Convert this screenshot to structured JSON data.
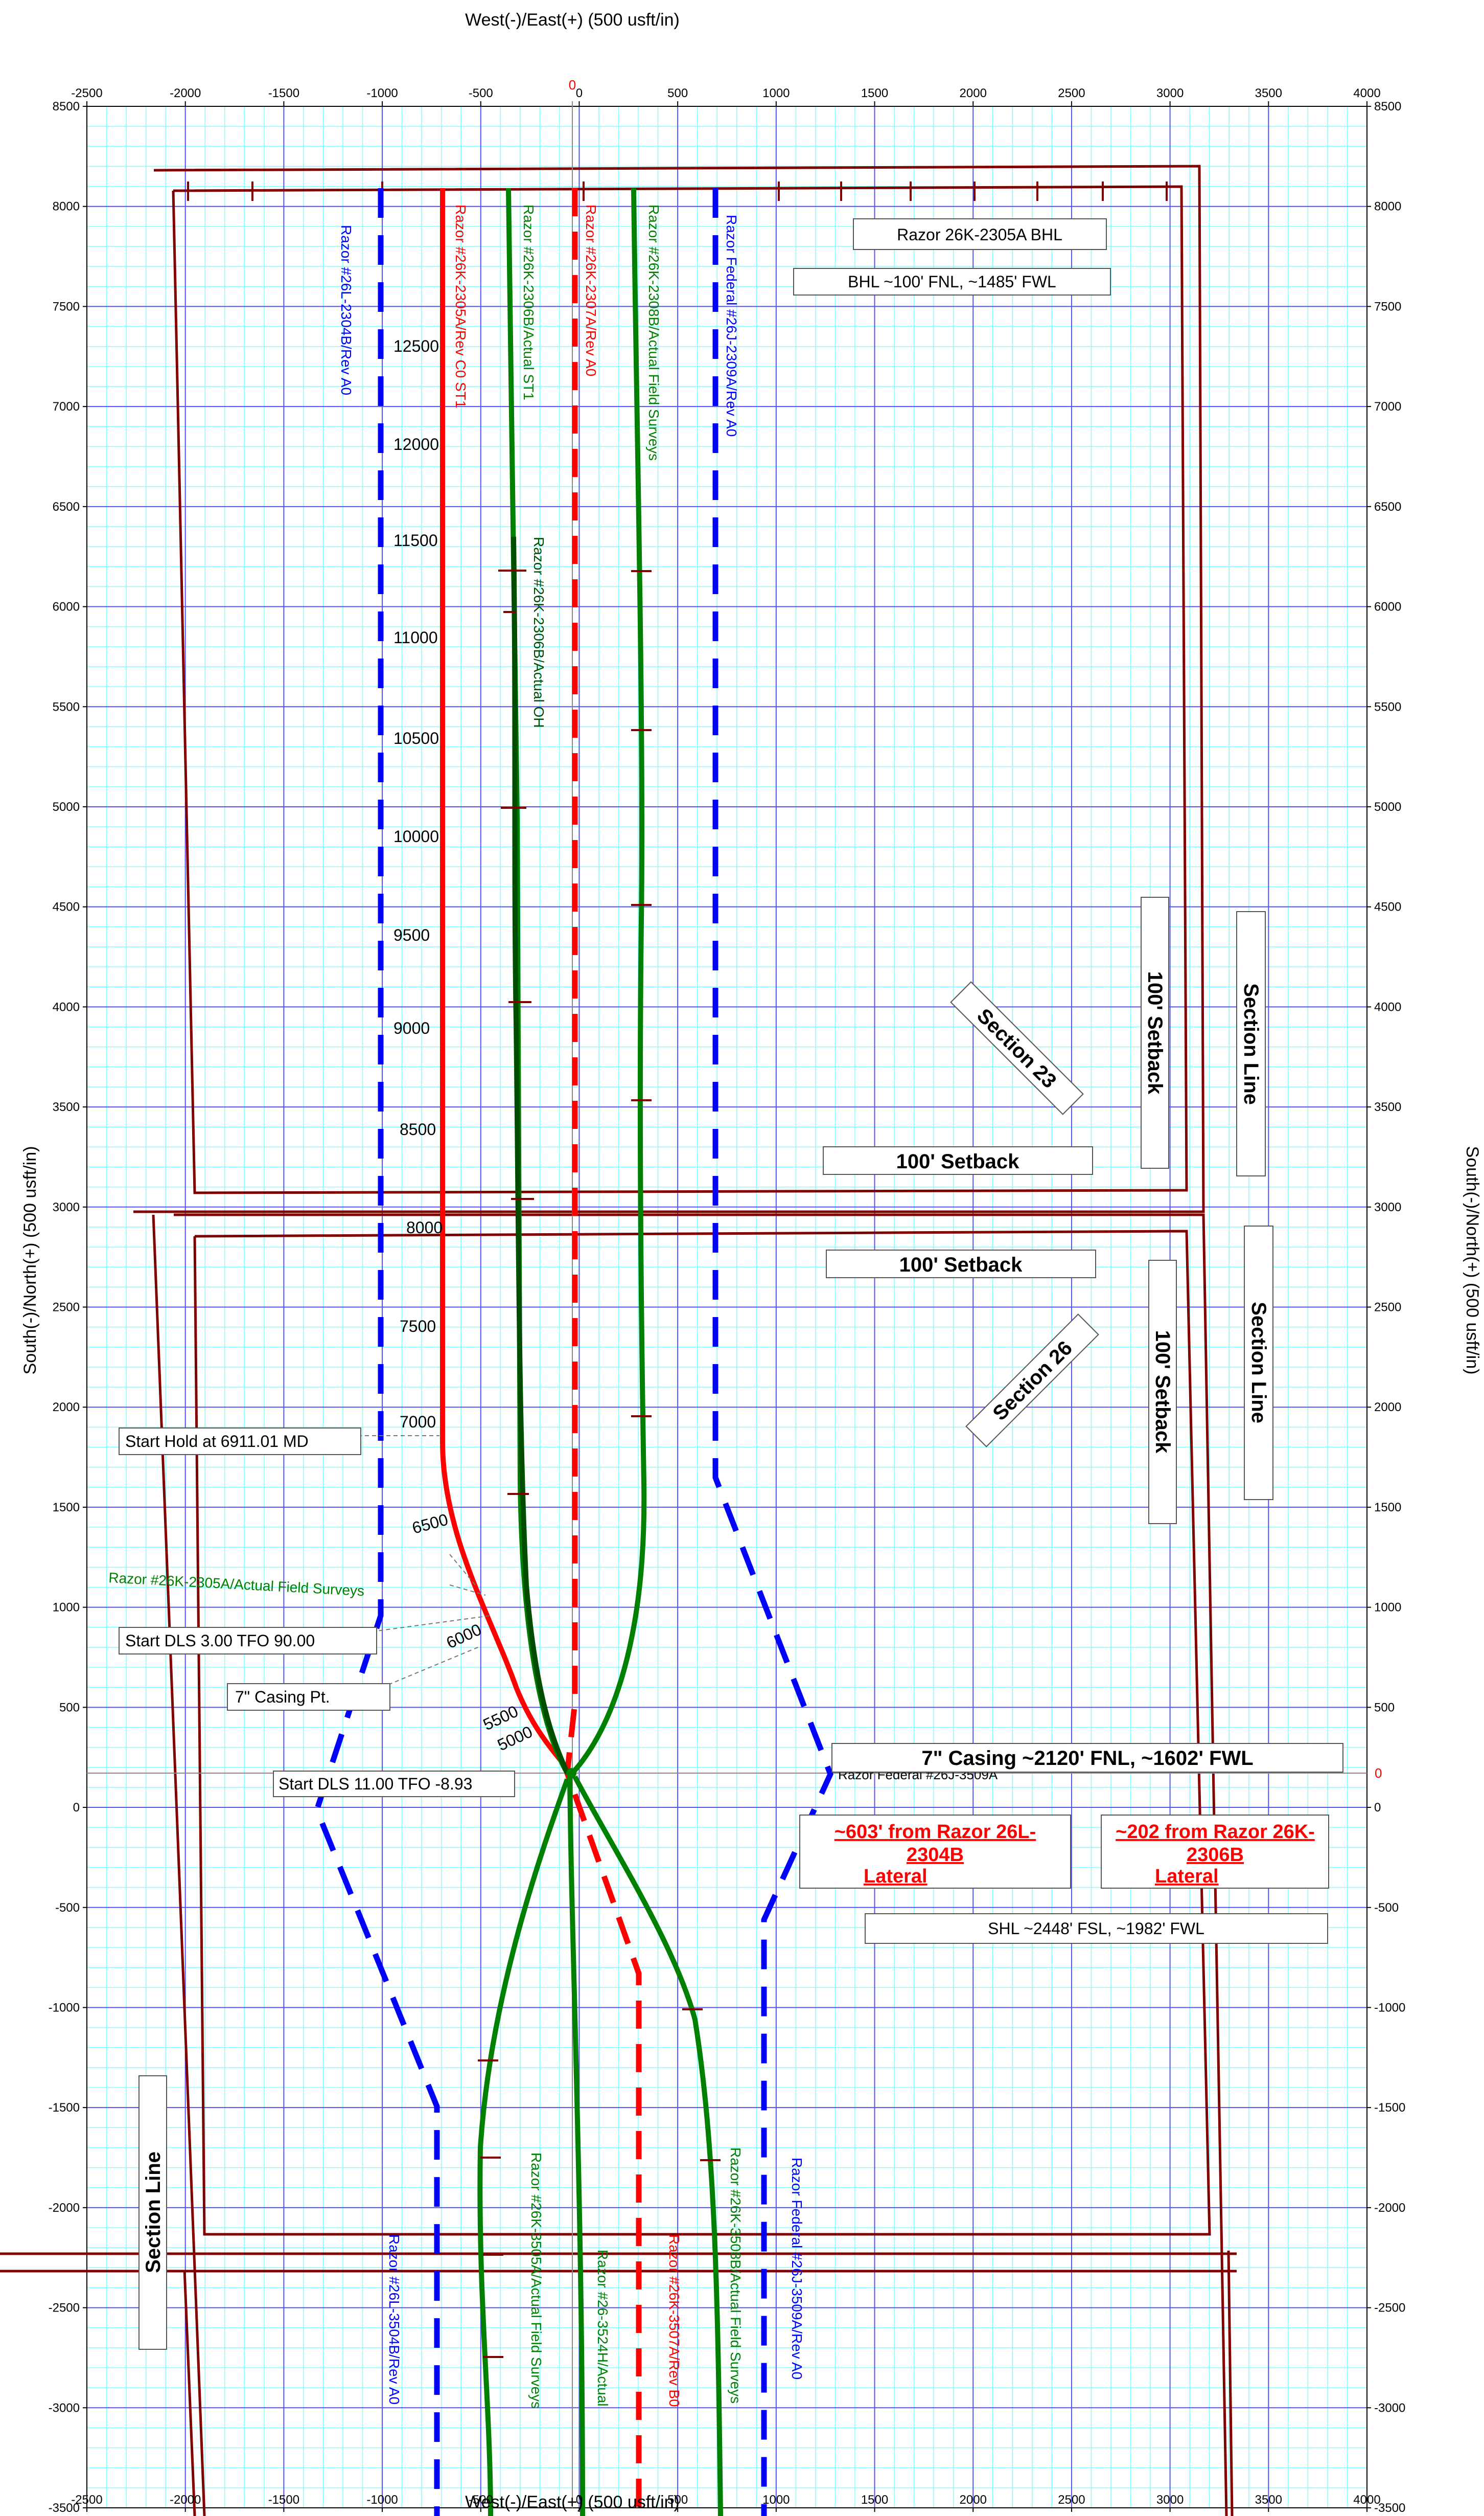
{
  "colors": {
    "grid_minor": "#7fffff",
    "grid_major": "#5555ee",
    "section": "#800000",
    "red": "#ff0000",
    "blue": "#0000ff",
    "green": "#008000",
    "darkgreen": "#004d00"
  },
  "axes": {
    "x_title_top": "West(-)/East(+) (500 usft/in)",
    "x_title_bottom": "West(-)/East(+) (500 usft/in)",
    "y_title_left": "South(-)/North(+) (500 usft/in)",
    "y_title_right": "South(-)/North(+) (500 usft/in)",
    "xlim": [
      -2500,
      4000
    ],
    "ylim": [
      -3500,
      8500
    ],
    "x_ticks": [
      -2500,
      -2000,
      -1500,
      -1000,
      -500,
      0,
      500,
      1000,
      1500,
      2000,
      2500,
      3000,
      3500,
      4000
    ],
    "y_ticks": [
      8500,
      8000,
      7500,
      7000,
      6500,
      6000,
      5500,
      5000,
      4500,
      4000,
      3500,
      3000,
      2500,
      2000,
      1500,
      1000,
      500,
      0,
      -500,
      -1000,
      -1500,
      -2000,
      -2500,
      -3000,
      -3500
    ],
    "zero_label": "0"
  },
  "boxes": {
    "bhl_name": "Razor 26K-2305A BHL",
    "bhl_loc": "BHL ~100' FNL, ~1485' FWL",
    "setback_1": "100' Setback",
    "setback_2": "100' Setback",
    "setback_v1": "100' Setback",
    "setback_v2": "100' Setback",
    "section23": "Section 23",
    "section26": "Section 26",
    "section_line_1": "Section Line",
    "section_line_2": "Section Line",
    "section_line_3": "Section Line",
    "start_hold": "Start Hold at 6911.01 MD",
    "start_dls3": "Start DLS 3.00 TFO 90.00",
    "casing_pt": "7\" Casing Pt.",
    "start_dls11": "Start DLS 11.00 TFO -8.93",
    "casing_loc": "7\" Casing ~2120' FNL, ~1602' FWL",
    "shl": "SHL ~2448' FSL, ~1982' FWL",
    "dist_1": "~603' from Razor 26L-2304B Lateral",
    "dist_2": "~202  from Razor 26K-2306B Lateral"
  },
  "md_labels": [
    "12500",
    "12000",
    "11500",
    "11000",
    "10500",
    "10000",
    "9500",
    "9000",
    "8500",
    "8000",
    "7500",
    "7000",
    "6500",
    "6000",
    "5500",
    "5000"
  ],
  "well_labels": {
    "w2304b": "Razor #26L-2304B/Rev A0",
    "w2305a_rev": "Razor #26K-2305A/Rev C0 ST1",
    "w2306b_st1": "Razor #26K-2306B/Actual ST1",
    "w2307a": "Razor #26K-2307A/Rev A0",
    "w2308b": "Razor #26K-2308B/Actual Field Surveys",
    "w2309a": "Razor Federal #26J-2309A/Rev A0",
    "w2306b_oh": "Razor #26K-2306B/Actual OH",
    "w2305a_field": "Razor #26K-2305A/Actual Field Surveys",
    "w3509a_short": "Razor Federal #26J-3509A",
    "w3504b": "Razor #26L-3504B/Rev A0",
    "w3505a": "Razor #26K-3505A/Actual Field Surveys",
    "w3524h": "Razor #26-3524H/Actual",
    "w3507a": "Razor #26K-3507A/Rev B0",
    "w3508b": "Razor #26K-3508B/Actual Field Surveys",
    "w3509a": "Razor Federal #26J-3509A/Rev A0"
  }
}
